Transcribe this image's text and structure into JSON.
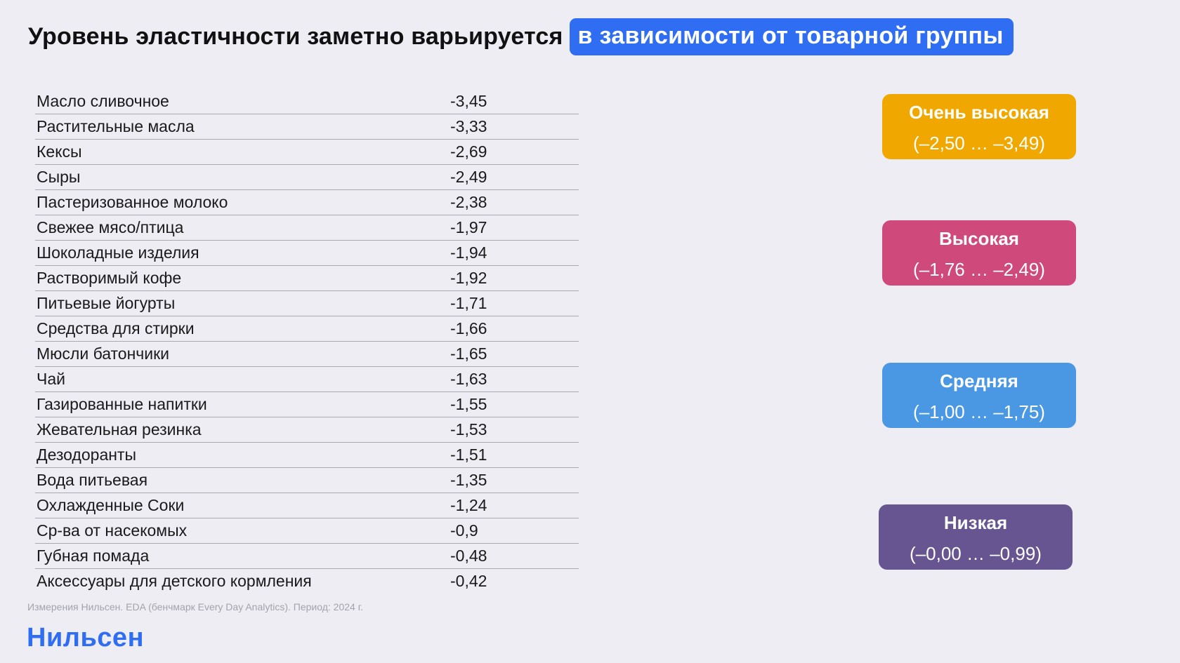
{
  "title": {
    "main": "Уровень эластичности заметно варьируется",
    "highlight": "в зависимости от товарной группы"
  },
  "table": {
    "rows": [
      {
        "name": "Масло сливочное",
        "value": "-3,45"
      },
      {
        "name": "Растительные масла",
        "value": "-3,33"
      },
      {
        "name": "Кексы",
        "value": "-2,69"
      },
      {
        "name": "Сыры",
        "value": "-2,49"
      },
      {
        "name": "Пастеризованное молоко",
        "value": "-2,38"
      },
      {
        "name": "Свежее мясо/птица",
        "value": "-1,97"
      },
      {
        "name": "Шоколадные изделия",
        "value": "-1,94"
      },
      {
        "name": "Растворимый кофе",
        "value": "-1,92"
      },
      {
        "name": "Питьевые йогурты",
        "value": "-1,71"
      },
      {
        "name": "Средства для стирки",
        "value": "-1,66"
      },
      {
        "name": "Мюсли батончики",
        "value": "-1,65"
      },
      {
        "name": "Чай",
        "value": "-1,63"
      },
      {
        "name": "Газированные напитки",
        "value": "-1,55"
      },
      {
        "name": "Жевательная резинка",
        "value": "-1,53"
      },
      {
        "name": "Дезодоранты",
        "value": "-1,51"
      },
      {
        "name": "Вода питьевая",
        "value": "-1,35"
      },
      {
        "name": "Охлажденные Соки",
        "value": "-1,24"
      },
      {
        "name": "Ср-ва от насекомых",
        "value": "-0,9"
      },
      {
        "name": "Губная помада",
        "value": "-0,48"
      },
      {
        "name": "Аксессуары для детского кормления",
        "value": "-0,42"
      }
    ]
  },
  "legend": {
    "levels": [
      {
        "title": "Очень высокая",
        "range": "(–2,50 … –3,49)",
        "color": "#f0a800"
      },
      {
        "title": "Высокая",
        "range": "(–1,76 … –2,49)",
        "color": "#cf4a7b"
      },
      {
        "title": "Средняя",
        "range": "(–1,00 … –1,75)",
        "color": "#4a98e3"
      },
      {
        "title": "Низкая",
        "range": "(–0,00 … –0,99)",
        "color": "#665590"
      }
    ]
  },
  "footnote": "Измерения Нильсен. EDA (бенчмарк Every Day Analytics). Период: 2024 г.",
  "logo": "Нильсен",
  "colors": {
    "background": "#eeedf4",
    "accent": "#2f6ef2"
  }
}
